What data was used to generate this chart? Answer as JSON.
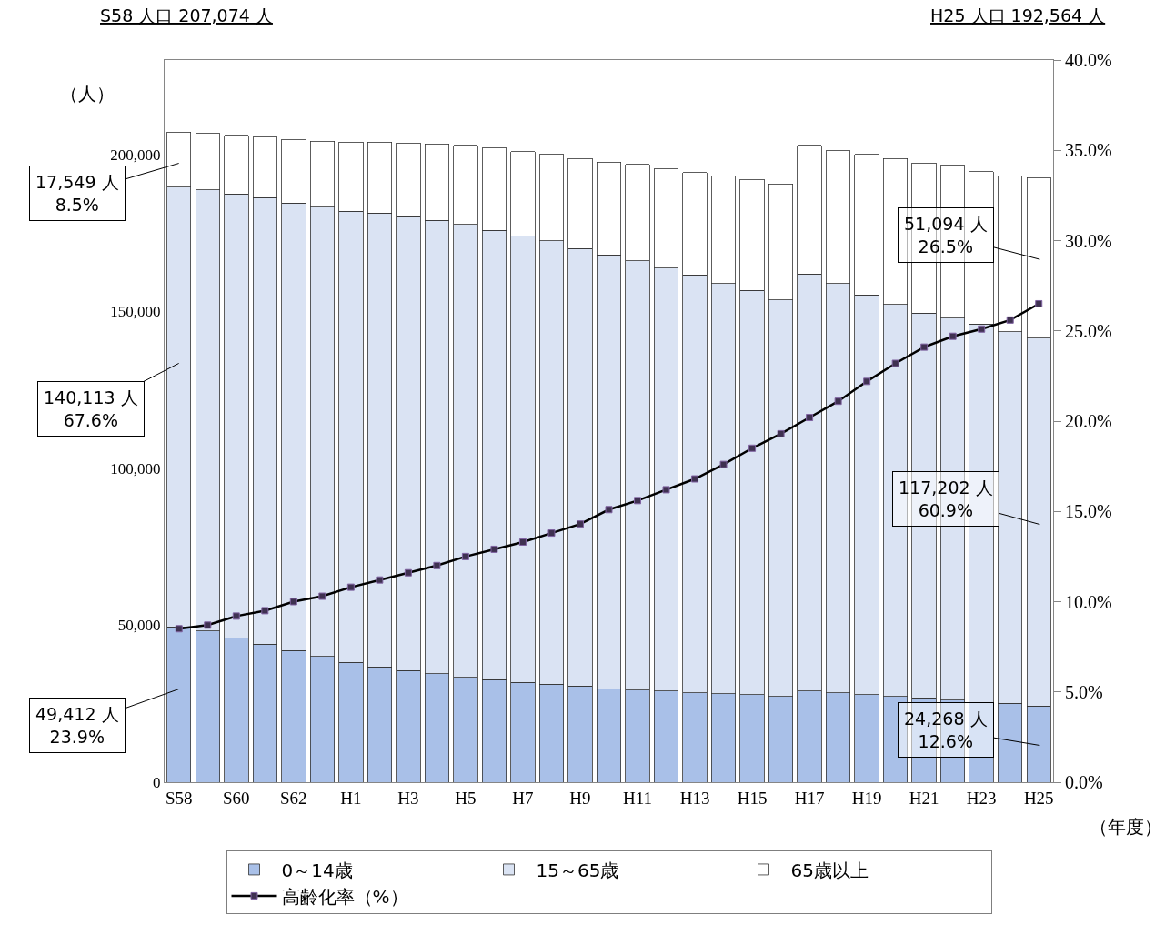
{
  "chart_data": {
    "type": "bar",
    "stacked": true,
    "xlabel": "（年度）",
    "ylabel": "（人）",
    "categories": [
      "S58",
      null,
      "S60",
      null,
      "S62",
      null,
      "H1",
      null,
      "H3",
      null,
      "H5",
      null,
      "H7",
      null,
      "H9",
      null,
      "H11",
      null,
      "H13",
      null,
      "H15",
      null,
      "H17",
      null,
      "H19",
      null,
      "H21",
      null,
      "H23",
      null,
      "H25"
    ],
    "series": [
      {
        "name": "0～14歳",
        "color": "#a9c0e8",
        "values": [
          49400,
          48100,
          45900,
          43900,
          42000,
          40100,
          38100,
          36700,
          35600,
          34500,
          33400,
          32600,
          31800,
          31200,
          30700,
          29800,
          29300,
          29000,
          28500,
          28200,
          27900,
          27300,
          29000,
          28500,
          27900,
          27300,
          26800,
          26200,
          25400,
          25100,
          24300
        ]
      },
      {
        "name": "15～65歳",
        "color": "#dae3f3",
        "values": [
          140100,
          140600,
          141400,
          142300,
          142500,
          143000,
          143700,
          144500,
          144500,
          144500,
          144200,
          143100,
          142200,
          141200,
          139200,
          138100,
          136700,
          134800,
          133100,
          130600,
          128700,
          126300,
          132900,
          130300,
          127300,
          124900,
          122600,
          121600,
          120500,
          118300,
          117200
        ]
      },
      {
        "name": "65歳以上",
        "color": "#ffffff",
        "values": [
          17500,
          17900,
          18800,
          19300,
          20200,
          21000,
          22100,
          22700,
          23500,
          24300,
          25200,
          26300,
          26800,
          27600,
          28700,
          29600,
          30700,
          31500,
          32600,
          34300,
          35400,
          37000,
          40900,
          42300,
          44800,
          46400,
          47800,
          48600,
          48600,
          49700,
          51100
        ]
      },
      {
        "name": "高齢化率（%）",
        "type": "line",
        "axis": "y2",
        "color": "#000000",
        "marker": "square",
        "values": [
          8.5,
          8.7,
          9.2,
          9.5,
          10.0,
          10.3,
          10.8,
          11.2,
          11.6,
          12.0,
          12.5,
          12.9,
          13.3,
          13.8,
          14.3,
          15.1,
          15.6,
          16.2,
          16.8,
          17.6,
          18.5,
          19.3,
          20.2,
          21.1,
          22.2,
          23.2,
          24.1,
          24.7,
          25.1,
          25.6,
          26.5
        ]
      }
    ],
    "ylim": [
      0,
      230000
    ],
    "yticks": [
      0,
      {
        "value": 50000,
        "label": "50,000"
      },
      {
        "value": 100000,
        "label": "100,000"
      },
      {
        "value": 150000,
        "label": "150,000"
      },
      {
        "value": 200000,
        "label": "200,000"
      }
    ],
    "y2lim": [
      0,
      40
    ],
    "y2ticks": [
      {
        "value": 0,
        "label": "0.0%"
      },
      {
        "value": 5,
        "label": "5.0%"
      },
      {
        "value": 10,
        "label": "10.0%"
      },
      {
        "value": 15,
        "label": "15.0%"
      },
      {
        "value": 20,
        "label": "20.0%"
      },
      {
        "value": 25,
        "label": "25.0%"
      },
      {
        "value": 30,
        "label": "30.0%"
      },
      {
        "value": 35,
        "label": "35.0%"
      },
      {
        "value": 40,
        "label": "40.0%"
      }
    ],
    "legend": "bottom",
    "grid": false,
    "annotations": [
      "S58 人口 207,074 人",
      "H25 人口 192,564 人",
      "17,549 人\n8.5%",
      "140,113 人\n67.6%",
      "49,412 人\n23.9%",
      "51,094 人\n26.5%",
      "117,202 人\n60.9%",
      "24,268 人\n12.6%"
    ]
  }
}
